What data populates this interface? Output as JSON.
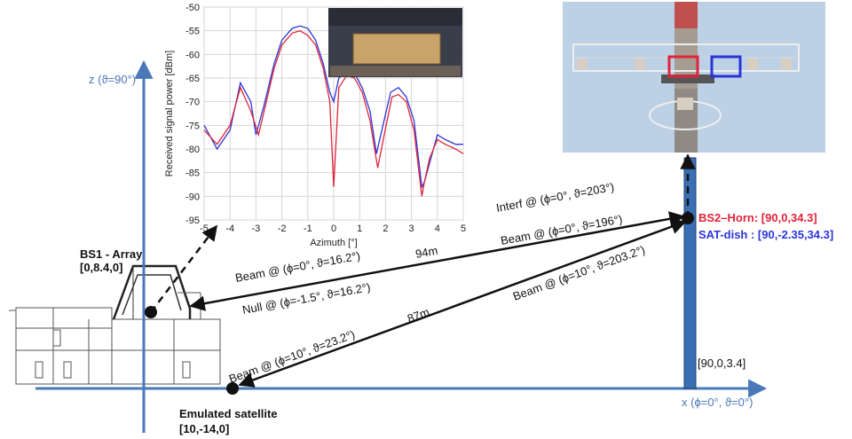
{
  "colors": {
    "axis": "#4a78b8",
    "arrow": "#111111",
    "red": "#e0243a",
    "blue": "#2a35d8",
    "pole": "#3a6fb4"
  },
  "axes": {
    "z_label": "z (ϑ=90°)",
    "x_label": "x (ϕ=0°, ϑ=0°)"
  },
  "nodes": {
    "bs1_name": "BS1 - Array",
    "bs1_coord": "[0,8.4,0]",
    "bs2_horn": "BS2–Horn: [90,0,34.3]",
    "sat_dish": "SAT-dish : [90,-2.35,34.3]",
    "pole_base": "[90,0,3.4]",
    "sat_name": "Emulated satellite",
    "sat_coord": "[10,-14,0]"
  },
  "links": {
    "beam_bs1": "Beam @ (ϕ=0°, ϑ=16.2°)",
    "null_bs1": "Null @ (ϕ=-1.5°, ϑ=16.2°)",
    "dist_top": "94m",
    "dist_bottom": "87m",
    "interf_bs2": "Interf @ (ϕ=0°, ϑ=203°)",
    "beam_bs2": "Beam @ (ϕ=0°, ϑ=196°)",
    "beam_bs2_sat": "Beam @ (ϕ=10°, ϑ=203.2°)",
    "beam_sat": "Beam @ (ϕ=10°, ϑ=23.2°)"
  },
  "chart_data": {
    "type": "line",
    "xlabel": "Azimuth [°]",
    "ylabel": "Received signal power [dBm]",
    "xlim": [
      -5,
      5
    ],
    "ylim": [
      -95,
      -50
    ],
    "xticks": [
      -5,
      -4,
      -3,
      -2,
      -1,
      0,
      1,
      2,
      3,
      4,
      5
    ],
    "yticks": [
      -50,
      -55,
      -60,
      -65,
      -70,
      -75,
      -80,
      -85,
      -90,
      -95
    ],
    "grid": true,
    "series": [
      {
        "color": "#2a35d8",
        "x": [
          -5,
          -4.5,
          -4,
          -3.6,
          -3.2,
          -3,
          -2.7,
          -2.3,
          -2,
          -1.6,
          -1.3,
          -1,
          -0.7,
          -0.4,
          -0.15,
          0,
          0.2,
          0.5,
          0.8,
          1.1,
          1.4,
          1.65,
          1.9,
          2.2,
          2.5,
          2.8,
          3.1,
          3.4,
          3.5,
          3.7,
          4.0,
          4.3,
          4.7,
          5
        ],
        "y": [
          -75,
          -80,
          -76,
          -66,
          -70,
          -77,
          -71,
          -62,
          -57,
          -54.5,
          -54,
          -54.5,
          -57,
          -62,
          -68,
          -70,
          -65,
          -63.5,
          -64,
          -67,
          -72,
          -81,
          -75,
          -68,
          -67,
          -69,
          -74,
          -88,
          -87,
          -83,
          -77,
          -78,
          -79,
          -79
        ]
      },
      {
        "color": "#e0243a",
        "x": [
          -5,
          -4.5,
          -4,
          -3.6,
          -3.2,
          -2.9,
          -2.6,
          -2.3,
          -2,
          -1.6,
          -1.3,
          -1,
          -0.7,
          -0.4,
          -0.15,
          0,
          0.2,
          0.5,
          0.8,
          1.1,
          1.4,
          1.7,
          1.95,
          2.25,
          2.5,
          2.8,
          3.1,
          3.4,
          3.5,
          3.7,
          4.0,
          4.3,
          4.7,
          5
        ],
        "y": [
          -76,
          -79,
          -75,
          -67,
          -72,
          -77,
          -70,
          -63,
          -58,
          -55.5,
          -55,
          -56,
          -58,
          -63,
          -70,
          -88,
          -67,
          -64.5,
          -65,
          -68,
          -74,
          -84,
          -77,
          -69,
          -68.5,
          -70,
          -76,
          -90,
          -87,
          -82,
          -78,
          -79,
          -80,
          -81
        ]
      }
    ]
  },
  "photo_panels": [
    "chart inset photo",
    "tower photo"
  ]
}
